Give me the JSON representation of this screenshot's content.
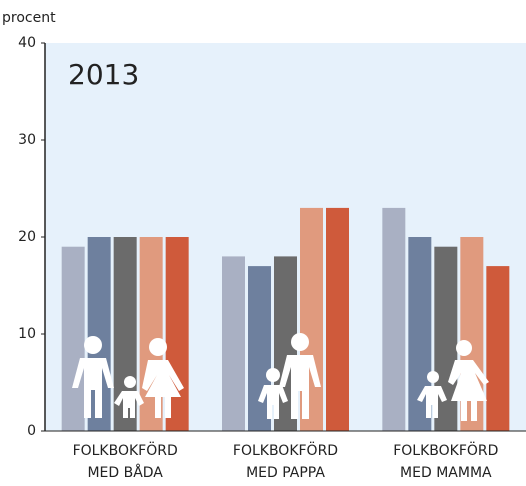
{
  "chart_data": {
    "type": "bar",
    "y_label": "procent",
    "annotation": "2013",
    "categories": [
      [
        "FOLKBOKFÖRD",
        "MED BÅDA"
      ],
      [
        "FOLKBOKFÖRD",
        "MED PAPPA"
      ],
      [
        "FOLKBOKFÖRD",
        "MED MAMMA"
      ]
    ],
    "series": [
      {
        "color": "#a9b0c3",
        "values": [
          19,
          18,
          23
        ]
      },
      {
        "color": "#6e809e",
        "values": [
          20,
          17,
          20
        ]
      },
      {
        "color": "#6b6b6b",
        "values": [
          20,
          18,
          19
        ]
      },
      {
        "color": "#e09a7e",
        "values": [
          20,
          23,
          20
        ]
      },
      {
        "color": "#cf5a3b",
        "values": [
          20,
          23,
          17
        ]
      }
    ],
    "ylim": [
      0,
      40
    ],
    "yticks": [
      0,
      10,
      20,
      30,
      40
    ],
    "grid": false
  }
}
